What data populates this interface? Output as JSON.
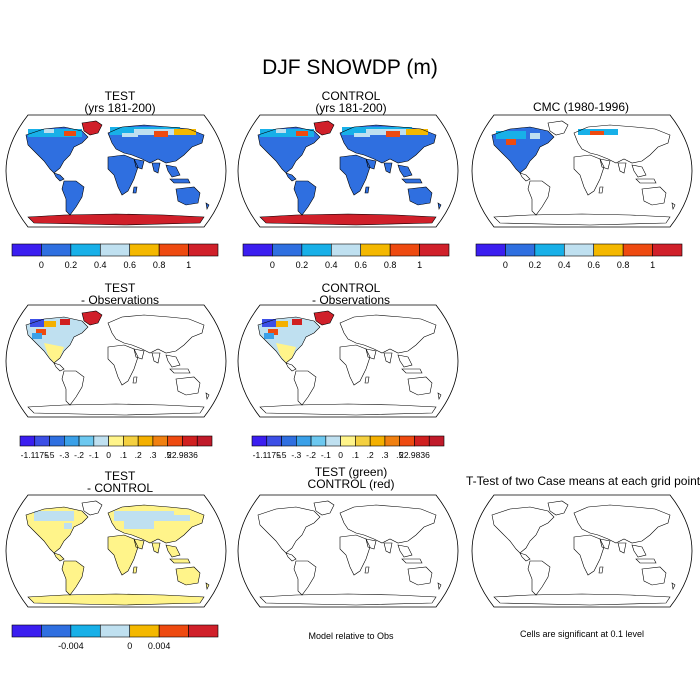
{
  "figure": {
    "title": "DJF SNOWDP (m)",
    "colors": {
      "snow_scale": [
        "#3b1ef0",
        "#2f6fe0",
        "#18b0e8",
        "#bfe0f0",
        "#f4b800",
        "#ee4a10",
        "#d0202a"
      ],
      "diff_scale": [
        "#3b1ef0",
        "#3c4fe6",
        "#2f6fe0",
        "#3aa0e8",
        "#6cc8f0",
        "#bfe0f0",
        "#fff48a",
        "#f4d040",
        "#f4b000",
        "#f08010",
        "#ee4a10",
        "#d02020",
        "#c01a2a"
      ],
      "blue_fill": "#2f6fe0",
      "red_fill": "#d0202a",
      "yellow_fill": "#fff48a",
      "lightblue_fill": "#bfe0f0"
    }
  },
  "chart_data": [
    {
      "type": "heatmap",
      "title": "TEST",
      "subtitle": "(yrs 181-200)",
      "variable": "SNOWDP",
      "units": "m",
      "colorbar": {
        "levels": [
          "0",
          "0.2",
          "0.4",
          "0.6",
          "0.8",
          "1"
        ],
        "range": [
          0,
          1
        ]
      }
    },
    {
      "type": "heatmap",
      "title": "CONTROL",
      "subtitle": "(yrs 181-200)",
      "variable": "SNOWDP",
      "units": "m",
      "colorbar": {
        "levels": [
          "0",
          "0.2",
          "0.4",
          "0.6",
          "0.8",
          "1"
        ],
        "range": [
          0,
          1
        ]
      }
    },
    {
      "type": "heatmap",
      "title": "CMC (1980-1996)",
      "subtitle": "",
      "variable": "SNOWDP",
      "units": "m",
      "colorbar": {
        "levels": [
          "0",
          "0.2",
          "0.4",
          "0.6",
          "0.8",
          "1"
        ],
        "range": [
          0,
          1
        ]
      }
    },
    {
      "type": "heatmap",
      "title": "TEST",
      "subtitle": "- Observations",
      "colorbar": {
        "labels": [
          "-1.1175",
          "-.5",
          "-.3",
          "-.2",
          "-.1",
          "0",
          ".1",
          ".2",
          ".3",
          ".5",
          "22.9836"
        ],
        "min": -1.1175,
        "max": 22.9836
      }
    },
    {
      "type": "heatmap",
      "title": "CONTROL",
      "subtitle": "- Observations",
      "colorbar": {
        "labels": [
          "-1.1175",
          "-.5",
          "-.3",
          "-.2",
          "-.1",
          "0",
          ".1",
          ".2",
          ".3",
          ".5",
          "22.9836"
        ],
        "min": -1.1175,
        "max": 22.9836
      }
    },
    {
      "type": "heatmap",
      "title": "TEST",
      "subtitle": "- CONTROL",
      "colorbar": {
        "labels": [
          "-0.004",
          "0",
          "0.004"
        ],
        "range": [
          -0.004,
          0.004
        ]
      }
    },
    {
      "type": "heatmap",
      "title": "TEST (green)",
      "subtitle": "CONTROL (red)",
      "note": "Model relative to Obs"
    },
    {
      "type": "heatmap",
      "title": "T-Test of two Case means at each grid point",
      "subtitle": "",
      "note": "Cells are significant at 0.1 level"
    }
  ]
}
